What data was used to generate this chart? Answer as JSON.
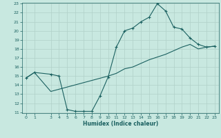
{
  "title": "",
  "xlabel": "Humidex (Indice chaleur)",
  "background_color": "#c8e8e0",
  "grid_color": "#b0d0c8",
  "line_color": "#1a6060",
  "ylim": [
    11,
    23
  ],
  "xlim": [
    -0.5,
    23.5
  ],
  "yticks": [
    11,
    12,
    13,
    14,
    15,
    16,
    17,
    18,
    19,
    20,
    21,
    22,
    23
  ],
  "xticks": [
    0,
    1,
    3,
    4,
    5,
    6,
    7,
    8,
    9,
    10,
    11,
    12,
    13,
    14,
    15,
    16,
    17,
    18,
    19,
    20,
    21,
    22,
    23
  ],
  "line1_x": [
    0,
    1,
    3,
    4,
    5,
    6,
    7,
    8,
    9,
    10,
    11,
    12,
    13,
    14,
    15,
    16,
    17,
    18,
    19,
    20,
    21,
    22,
    23
  ],
  "line1_y": [
    14.8,
    15.4,
    15.2,
    15.0,
    11.3,
    11.1,
    11.1,
    11.1,
    12.8,
    14.9,
    18.2,
    20.0,
    20.3,
    21.0,
    21.5,
    23.0,
    22.2,
    20.4,
    20.2,
    19.2,
    18.5,
    18.2,
    18.3
  ],
  "line2_x": [
    0,
    1,
    3,
    10,
    11,
    12,
    13,
    14,
    15,
    16,
    17,
    18,
    19,
    20,
    21,
    22,
    23
  ],
  "line2_y": [
    14.8,
    15.4,
    13.3,
    15.0,
    15.3,
    15.8,
    16.0,
    16.4,
    16.8,
    17.1,
    17.4,
    17.8,
    18.2,
    18.5,
    18.0,
    18.2,
    18.3
  ]
}
